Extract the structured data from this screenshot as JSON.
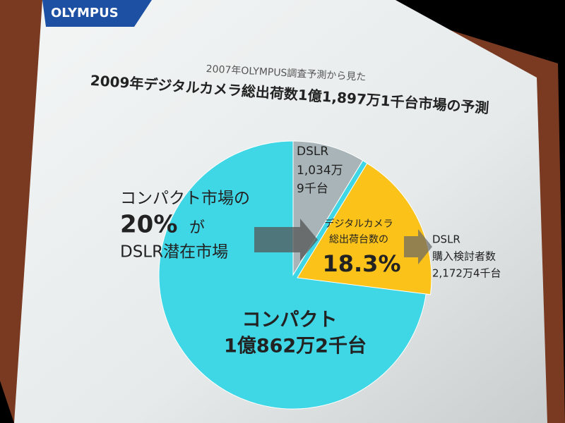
{
  "chart_data": {
    "type": "pie",
    "logo": "OLYMPUS",
    "subtitle": "2007年OLYMPUS調査予測から見た",
    "title": "2009年デジタルカメラ総出荷数1億1,897万1千台市場の予測",
    "slices": [
      {
        "name": "DSLR",
        "value": 10349000,
        "value_label": [
          "1,034万",
          "9千台"
        ],
        "color": "#a9b4b8"
      },
      {
        "name": "コンパクト",
        "value": 108622000,
        "value_label": [
          "1億862万2千台"
        ],
        "color": "#3fd6e6"
      }
    ],
    "highlight": {
      "text": [
        "デジタルカメラ",
        "総出荷台数の"
      ],
      "percent": 18.3,
      "percent_label": "18.3%",
      "color": "#fbc21a"
    },
    "left_note": {
      "line1": "コンパクト市場の",
      "big": "20%",
      "small": "が",
      "line3": "DSLR潜在市場"
    },
    "right_note": [
      "DSLR",
      "購入検討者数",
      "2,172万4千台"
    ]
  }
}
